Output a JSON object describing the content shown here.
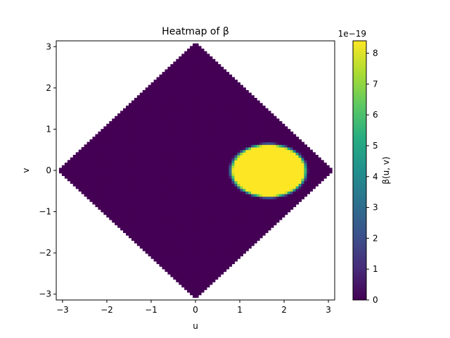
{
  "chart_data": {
    "type": "heatmap",
    "title": "Heatmap of β",
    "xlabel": "u",
    "ylabel": "v",
    "xlim": [
      -3.1416,
      3.1416
    ],
    "ylim": [
      -3.1416,
      3.1416
    ],
    "xticks": [
      "−3",
      "−2",
      "−1",
      "0",
      "1",
      "2",
      "3"
    ],
    "yticks": [
      "−3",
      "−2",
      "−1",
      "0",
      "1",
      "2",
      "3"
    ],
    "grid": false,
    "domain_shape": "diamond |u| + |v| ≤ π",
    "background_value": 0,
    "hotspot": {
      "center_u": 1.65,
      "center_v": 0.0,
      "radius_u": 0.9,
      "radius_v": 0.68,
      "value": 8.4e-19
    },
    "colorbar": {
      "label": "β(u, v)",
      "exponent_label": "1e−19",
      "colormap": "viridis",
      "min": 0,
      "max": 8.4,
      "ticks": [
        "0",
        "1",
        "2",
        "3",
        "4",
        "5",
        "6",
        "7",
        "8"
      ]
    }
  }
}
